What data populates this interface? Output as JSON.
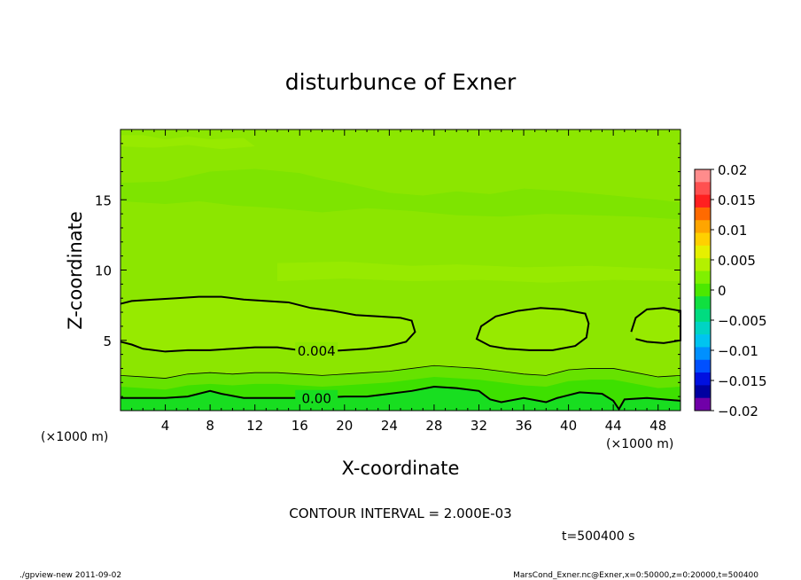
{
  "chart_data": {
    "type": "heatmap",
    "title": "disturbunce of Exner",
    "xlabel": "X-coordinate",
    "ylabel": "Z-coordinate",
    "x_unit_left": "(×1000 m)",
    "x_unit_right": "(×1000 m)",
    "xlim": [
      0,
      50
    ],
    "ylim": [
      0,
      20
    ],
    "xticks": [
      4,
      8,
      12,
      16,
      20,
      24,
      28,
      32,
      36,
      40,
      44,
      48
    ],
    "yticks": [
      5,
      10,
      15
    ],
    "contour_labels": [
      {
        "text": "0.004",
        "x": 17.5,
        "y": 4.3
      },
      {
        "text": "0.00",
        "x": 17.5,
        "y": 0.9
      }
    ],
    "contour_interval_text": "CONTOUR INTERVAL = 2.000E-03",
    "time_text": "t=500400 s",
    "colorbar": {
      "labels": [
        "0.02",
        "0.015",
        "0.01",
        "0.005",
        "0",
        "−0.005",
        "−0.01",
        "−0.015",
        "−0.02"
      ],
      "colors": [
        "#ff8c8c",
        "#ff5050",
        "#ff2020",
        "#ff6a00",
        "#ffa500",
        "#ffd000",
        "#e6f000",
        "#b4f000",
        "#80f000",
        "#4ce800",
        "#10e040",
        "#00dc80",
        "#00d4c4",
        "#00c4f0",
        "#0090ff",
        "#0050ff",
        "#0010e0",
        "#0000a0",
        "#7000a8"
      ]
    },
    "field_colors": {
      "bg": "#8ce600",
      "light": "#97ea00",
      "dark": "#7ee400",
      "mid": "#66e200",
      "low": "#3ee000",
      "bottom": "#18de20"
    }
  },
  "footer": {
    "left": "./gpview-new   2011-09-02",
    "right": "MarsCond_Exner.nc@Exner,x=0:50000,z=0:20000,t=500400"
  }
}
